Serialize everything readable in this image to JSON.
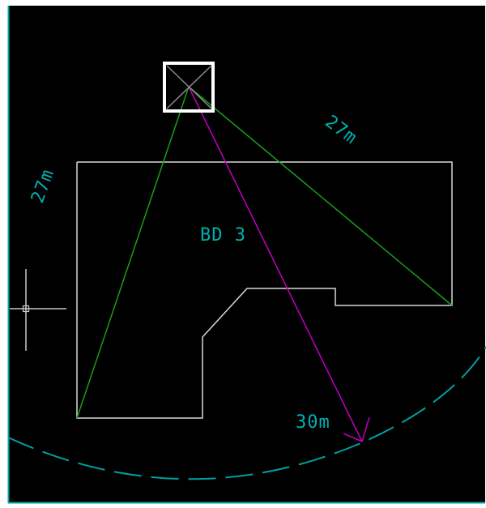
{
  "drawing": {
    "labels": {
      "building": "BD 3",
      "dim_left": "27m",
      "dim_right": "27m",
      "dim_radius": "30m"
    },
    "colors": {
      "background": "#000000",
      "border": "#00a5a5",
      "building_outline": "#d8d8d8",
      "text": "#00b0b0",
      "range_arc": "#00a0a0",
      "green_line": "#18a018",
      "magenta_line": "#c000c0",
      "crane_box": "#ffffff",
      "crane_cross": "#888888",
      "cursor": "#c8c8c8"
    }
  }
}
